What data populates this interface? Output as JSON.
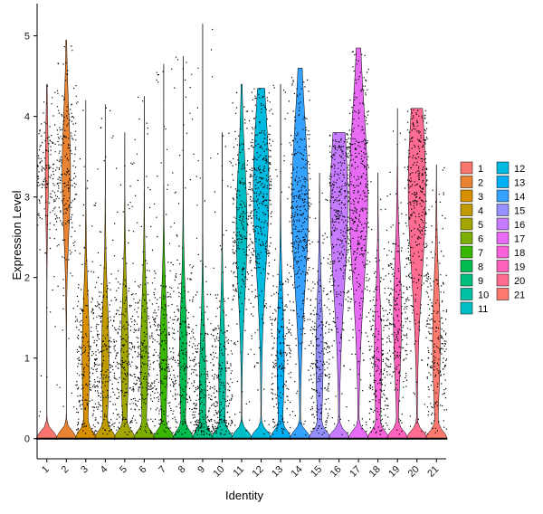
{
  "chart_data": {
    "type": "violin",
    "title": "",
    "xlabel": "Identity",
    "ylabel": "Expression Level",
    "ylim": [
      -0.25,
      5.4
    ],
    "yticks": [
      0,
      1,
      2,
      3,
      4,
      5
    ],
    "grid": false,
    "legend": {
      "position": "right",
      "columns": 2
    },
    "categories": [
      "1",
      "2",
      "3",
      "4",
      "5",
      "6",
      "7",
      "8",
      "9",
      "10",
      "11",
      "12",
      "13",
      "14",
      "15",
      "16",
      "17",
      "18",
      "19",
      "20",
      "21"
    ],
    "colors": [
      "#F8766D",
      "#EA8331",
      "#D89000",
      "#C09B00",
      "#A3A500",
      "#7CAE00",
      "#39B600",
      "#00BB4E",
      "#00BF7D",
      "#00C1A3",
      "#00BFC4",
      "#00BAE0",
      "#00B0F6",
      "#35A2FF",
      "#9590FF",
      "#C77CFF",
      "#E76BF3",
      "#FA62DB",
      "#FF62BC",
      "#FF6C91",
      "#FF7A6E"
    ],
    "series": [
      {
        "name": "1",
        "max": 4.4,
        "spread": 0.15,
        "mode": 3.3
      },
      {
        "name": "2",
        "max": 4.95,
        "spread": 0.42,
        "mode": 3.3
      },
      {
        "name": "3",
        "max": 4.2,
        "spread": 0.42,
        "mode": 1.0
      },
      {
        "name": "4",
        "max": 4.15,
        "spread": 0.42,
        "mode": 1.0
      },
      {
        "name": "5",
        "max": 3.8,
        "spread": 0.42,
        "mode": 1.0
      },
      {
        "name": "6",
        "max": 4.25,
        "spread": 0.42,
        "mode": 1.0
      },
      {
        "name": "7",
        "max": 4.65,
        "spread": 0.42,
        "mode": 1.0
      },
      {
        "name": "8",
        "max": 4.75,
        "spread": 0.42,
        "mode": 1.0
      },
      {
        "name": "9",
        "max": 5.15,
        "spread": 0.42,
        "mode": 0.6
      },
      {
        "name": "10",
        "max": 3.8,
        "spread": 0.42,
        "mode": 0.7
      },
      {
        "name": "11",
        "max": 4.4,
        "spread": 0.55,
        "mode": 2.6
      },
      {
        "name": "12",
        "max": 4.35,
        "spread": 0.8,
        "mode": 3.1
      },
      {
        "name": "13",
        "max": 4.4,
        "spread": 0.42,
        "mode": 1.0
      },
      {
        "name": "14",
        "max": 4.6,
        "spread": 0.85,
        "mode": 2.9
      },
      {
        "name": "15",
        "max": 3.3,
        "spread": 0.42,
        "mode": 1.0
      },
      {
        "name": "16",
        "max": 3.8,
        "spread": 0.9,
        "mode": 2.9
      },
      {
        "name": "17",
        "max": 4.85,
        "spread": 0.95,
        "mode": 3.0
      },
      {
        "name": "18",
        "max": 3.3,
        "spread": 0.42,
        "mode": 1.0
      },
      {
        "name": "19",
        "max": 4.1,
        "spread": 0.42,
        "mode": 1.5
      },
      {
        "name": "20",
        "max": 4.1,
        "spread": 0.9,
        "mode": 3.1
      },
      {
        "name": "21",
        "max": 3.4,
        "spread": 0.42,
        "mode": 1.2
      }
    ]
  }
}
